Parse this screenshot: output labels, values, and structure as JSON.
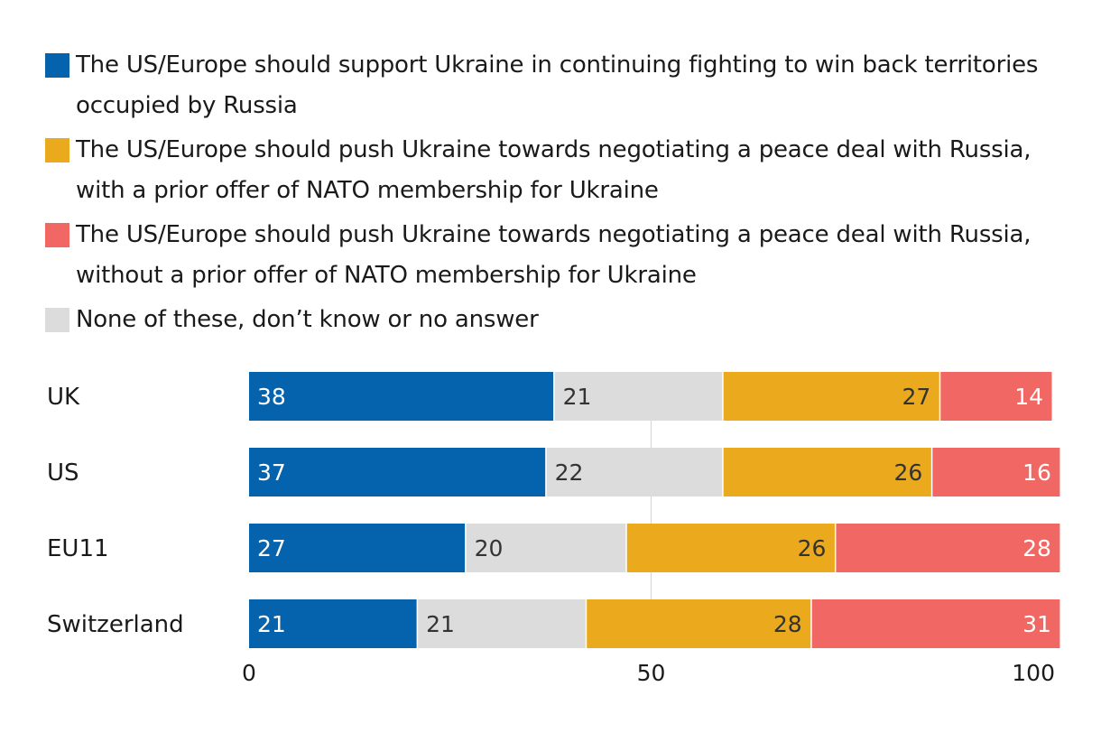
{
  "chart_data": {
    "type": "bar",
    "orientation": "horizontal",
    "stacked": true,
    "categories": [
      "UK",
      "US",
      "EU11",
      "Switzerland"
    ],
    "series": [
      {
        "name": "The US/Europe should support Ukraine in continuing fighting to win back territories occupied by Russia",
        "color": "#0563ad",
        "label_color": "#ffffff",
        "label_align": "start",
        "values": [
          38,
          37,
          27,
          21
        ]
      },
      {
        "name": "None of these, don’t know or no answer",
        "color": "#dcdcdc",
        "label_color": "#333333",
        "label_align": "start",
        "values": [
          21,
          22,
          20,
          21
        ]
      },
      {
        "name": "The US/Europe should push Ukraine towards negotiating a peace deal with Russia, with a prior offer of NATO membership for Ukraine",
        "color": "#ebaa1e",
        "label_color": "#333333",
        "label_align": "end",
        "values": [
          27,
          26,
          26,
          28
        ]
      },
      {
        "name": "The US/Europe should push Ukraine towards negotiating a peace deal with Russia, without a prior offer of NATO membership for Ukraine",
        "color": "#f06764",
        "label_color": "#ffffff",
        "label_align": "end",
        "values": [
          14,
          16,
          28,
          31
        ]
      }
    ],
    "legend_order": [
      0,
      2,
      3,
      1
    ],
    "legend_position": "top",
    "xlim": [
      0,
      100
    ],
    "xticks": [
      "0",
      "50",
      "100"
    ],
    "grid": true
  }
}
